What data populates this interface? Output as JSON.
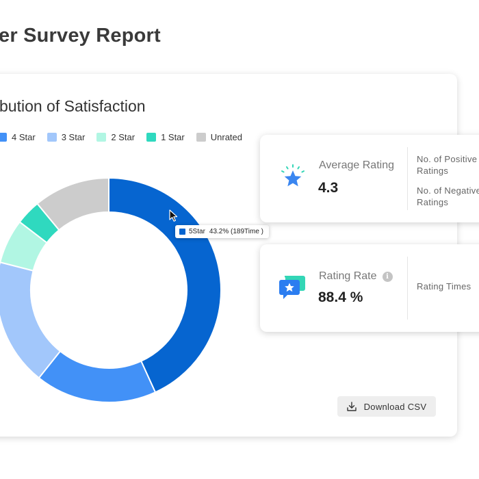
{
  "page": {
    "title": "er Survey Report"
  },
  "satisfaction": {
    "title": "bution of Satisfaction",
    "legend": [
      {
        "label": "4 Star",
        "color": "#4291f7"
      },
      {
        "label": "3 Star",
        "color": "#a2c7fb"
      },
      {
        "label": "2 Star",
        "color": "#b1f6e3"
      },
      {
        "label": "1 Star",
        "color": "#2fd9bf"
      },
      {
        "label": "Unrated",
        "color": "#cccccc"
      }
    ],
    "tooltip": {
      "label": "5Star",
      "value": "43.2% (189Time )",
      "color": "#0665d0"
    },
    "download_label": "Download  CSV"
  },
  "chart_data": {
    "type": "pie",
    "donut": true,
    "series": [
      {
        "name": "5Star",
        "percent": 43.2,
        "count": 189,
        "color": "#0665d0"
      },
      {
        "name": "4 Star",
        "percent": 17.5,
        "color": "#4291f7"
      },
      {
        "name": "3 Star",
        "percent": 18.3,
        "color": "#a2c7fb"
      },
      {
        "name": "2 Star",
        "percent": 6.4,
        "color": "#b1f6e3"
      },
      {
        "name": "1 Star",
        "percent": 3.6,
        "color": "#2fd9bf"
      },
      {
        "name": "Unrated",
        "percent": 11.0,
        "color": "#cccccc"
      }
    ]
  },
  "stats": {
    "average_rating": {
      "label": "Average Rating",
      "value": "4.3",
      "side_lines": [
        "No. of Positive",
        "Ratings",
        "No. of Negative",
        "Ratings"
      ]
    },
    "rating_rate": {
      "label": "Rating Rate",
      "info_glyph": "i",
      "value": "88.4 %",
      "side_label": "Rating Times"
    }
  },
  "icons": {
    "star_icon_color": "#3a86f0",
    "chat_star_icon_color": "#2b7df0",
    "chat_back_color": "#33d6b6"
  }
}
